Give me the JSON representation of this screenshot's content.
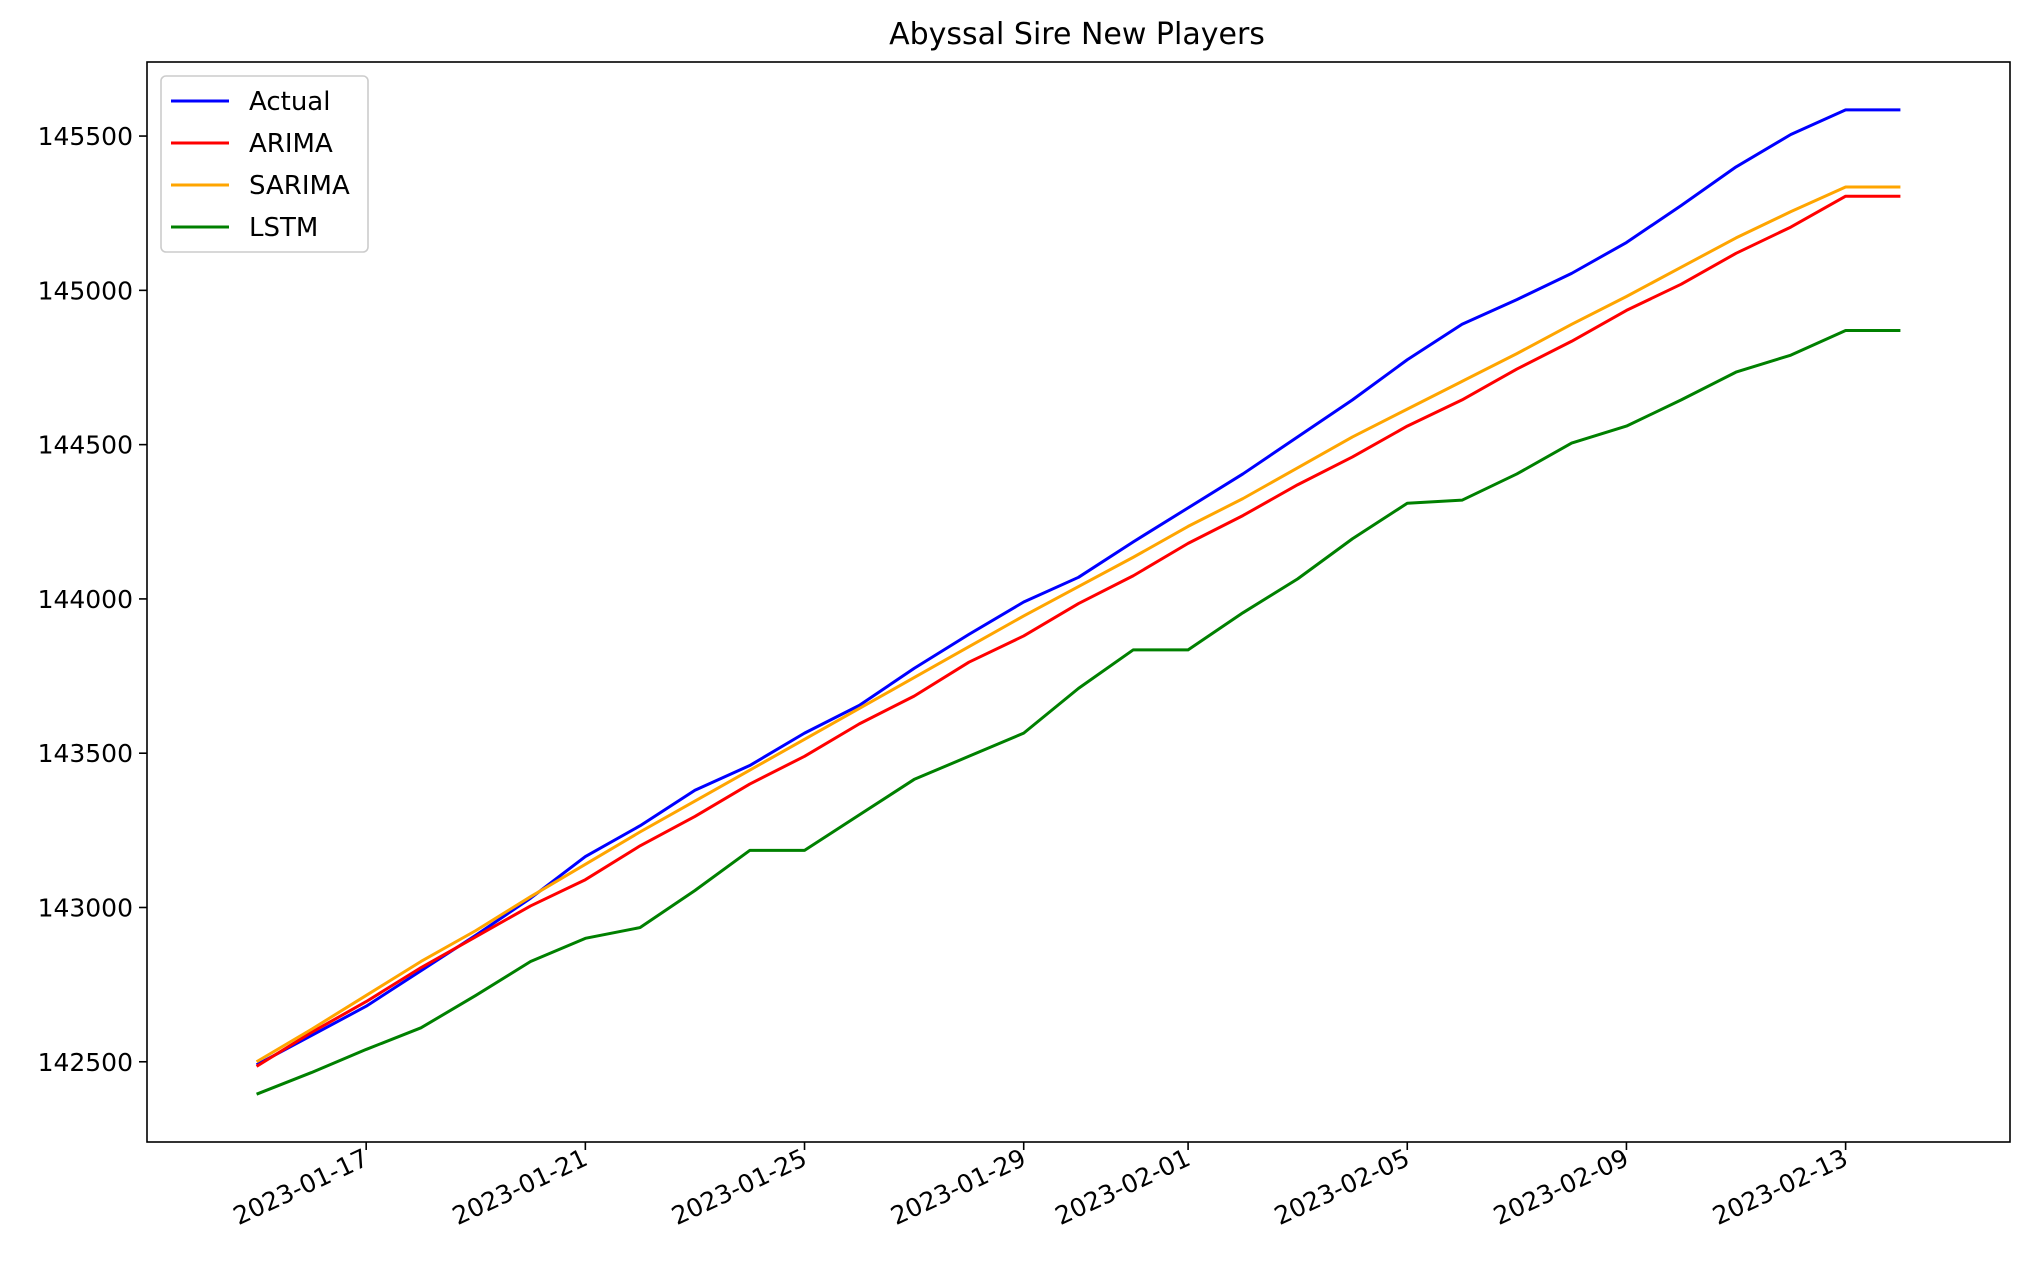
{
  "chart_data": {
    "type": "line",
    "title": "Abyssal Sire New Players",
    "xlabel": "",
    "ylabel": "",
    "x": [
      "2023-01-15",
      "2023-01-16",
      "2023-01-17",
      "2023-01-18",
      "2023-01-19",
      "2023-01-20",
      "2023-01-21",
      "2023-01-22",
      "2023-01-23",
      "2023-01-24",
      "2023-01-25",
      "2023-01-26",
      "2023-01-27",
      "2023-01-28",
      "2023-01-29",
      "2023-01-30",
      "2023-01-31",
      "2023-02-01",
      "2023-02-02",
      "2023-02-03",
      "2023-02-04",
      "2023-02-05",
      "2023-02-06",
      "2023-02-07",
      "2023-02-08",
      "2023-02-09",
      "2023-02-10",
      "2023-02-11",
      "2023-02-12",
      "2023-02-13",
      "2023-02-14"
    ],
    "xticks": [
      "2023-01-17",
      "2023-01-21",
      "2023-01-25",
      "2023-01-29",
      "2023-02-01",
      "2023-02-05",
      "2023-02-09",
      "2023-02-13"
    ],
    "xlim": [
      "2023-01-13",
      "2023-02-16"
    ],
    "yticks": [
      142500,
      143000,
      143500,
      144000,
      144500,
      145000,
      145500
    ],
    "ylim": [
      142240,
      145740
    ],
    "grid": false,
    "legend_position": "upper-left",
    "series": [
      {
        "name": "Actual",
        "color": "#0000ff",
        "values": [
          142490,
          142585,
          142680,
          142795,
          142910,
          143030,
          143165,
          143265,
          143380,
          143460,
          143565,
          143655,
          143775,
          143885,
          143990,
          144070,
          144185,
          144295,
          144405,
          144525,
          144645,
          144775,
          144890,
          144970,
          145055,
          145155,
          145275,
          145400,
          145505,
          145585,
          145585
        ]
      },
      {
        "name": "ARIMA",
        "color": "#ff0000",
        "values": [
          142485,
          142595,
          142695,
          142805,
          142905,
          143005,
          143090,
          143200,
          143295,
          143400,
          143490,
          143595,
          143685,
          143795,
          143880,
          143985,
          144075,
          144180,
          144270,
          144370,
          144460,
          144560,
          144645,
          144745,
          144835,
          144935,
          145020,
          145120,
          145205,
          145305,
          145305
        ]
      },
      {
        "name": "SARIMA",
        "color": "#ffa500",
        "values": [
          142500,
          142605,
          142715,
          142825,
          142925,
          143035,
          143140,
          143245,
          143345,
          143445,
          143545,
          143645,
          143745,
          143845,
          143945,
          144040,
          144135,
          144235,
          144325,
          144425,
          144525,
          144615,
          144705,
          144795,
          144890,
          144980,
          145075,
          145170,
          145255,
          145335,
          145335
        ]
      },
      {
        "name": "LSTM",
        "color": "#008000",
        "values": [
          142395,
          142465,
          142540,
          142610,
          142715,
          142825,
          142900,
          142935,
          143055,
          143185,
          143185,
          143300,
          143415,
          143490,
          143565,
          143710,
          143835,
          143835,
          143955,
          144065,
          144195,
          144310,
          144320,
          144405,
          144505,
          144560,
          144645,
          144735,
          144790,
          144870,
          144870
        ]
      }
    ]
  }
}
